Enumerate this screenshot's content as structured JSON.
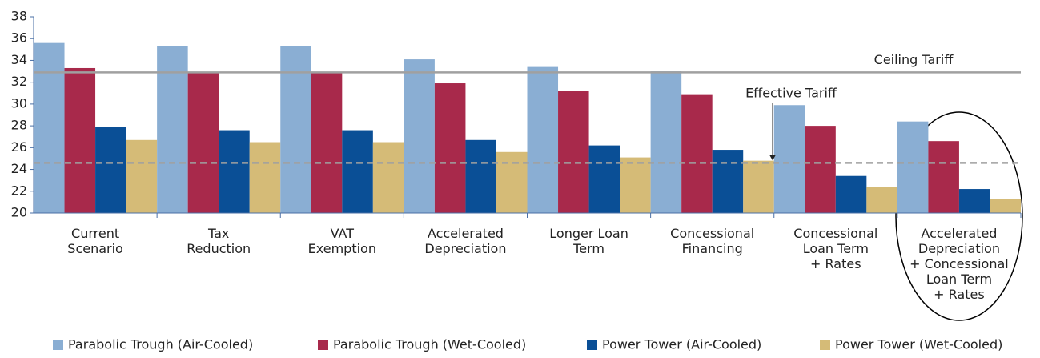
{
  "chart_data": {
    "type": "bar",
    "categories": [
      [
        "Current",
        "Scenario"
      ],
      [
        "Tax",
        "Reduction"
      ],
      [
        "VAT",
        "Exemption"
      ],
      [
        "Accelerated",
        "Depreciation"
      ],
      [
        "Longer Loan",
        "Term"
      ],
      [
        "Concessional",
        "Financing"
      ],
      [
        "Concessional",
        "Loan Term",
        "+ Rates"
      ],
      [
        "Accelerated",
        "Depreciation",
        "+ Concessional",
        "Loan Term",
        "+ Rates"
      ]
    ],
    "series": [
      {
        "name": "Parabolic Trough (Air-Cooled)",
        "color": "#8aaed3",
        "values": [
          35.6,
          35.3,
          35.3,
          34.1,
          33.4,
          33.0,
          29.9,
          28.4
        ]
      },
      {
        "name": "Parabolic Trough (Wet-Cooled)",
        "color": "#a8294b",
        "values": [
          33.3,
          32.9,
          32.9,
          31.9,
          31.2,
          30.9,
          28.0,
          26.6
        ]
      },
      {
        "name": "Power Tower (Air-Cooled)",
        "color": "#0a4f96",
        "values": [
          27.9,
          27.6,
          27.6,
          26.7,
          26.2,
          25.8,
          23.4,
          22.2
        ]
      },
      {
        "name": "Power Tower (Wet-Cooled)",
        "color": "#d5bb77",
        "values": [
          26.7,
          26.5,
          26.5,
          25.6,
          25.1,
          24.8,
          22.4,
          21.3
        ]
      }
    ],
    "reference_lines": [
      {
        "label": "Ceiling Tariff",
        "value": 32.9,
        "style": "solid",
        "color": "#a0a0a0"
      },
      {
        "label": "Effective Tariff",
        "value": 24.6,
        "style": "dashed",
        "color": "#a0a0a0"
      }
    ],
    "ylim": [
      20,
      38
    ],
    "yticks": [
      20,
      22,
      24,
      26,
      28,
      30,
      32,
      34,
      36,
      38
    ]
  }
}
